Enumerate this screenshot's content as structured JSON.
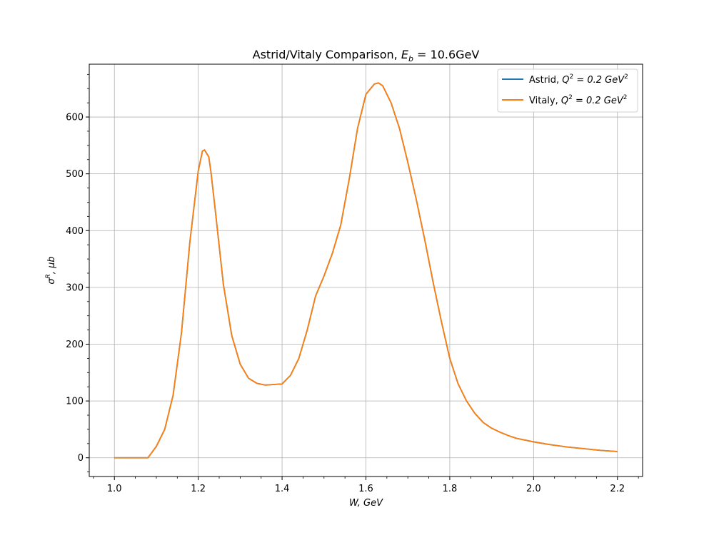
{
  "chart_data": {
    "type": "line",
    "title": "Astrid/Vitaly Comparison, E_b = 10.6GeV",
    "title_parts": {
      "prefix": "Astrid/Vitaly Comparison, ",
      "sym": "E",
      "sub": "b",
      "suffix": " = 10.6GeV"
    },
    "xlabel": "W, GeV",
    "ylabel": "σR, μb",
    "ylabel_parts": {
      "sym": "σ",
      "sup": "R",
      "rest": ", μb"
    },
    "xlim": [
      0.94,
      2.26
    ],
    "ylim": [
      -33,
      693
    ],
    "xticks": [
      1.0,
      1.2,
      1.4,
      1.6,
      1.8,
      2.0,
      2.2
    ],
    "xtick_labels": [
      "1.0",
      "1.2",
      "1.4",
      "1.6",
      "1.8",
      "2.0",
      "2.2"
    ],
    "yticks": [
      0,
      100,
      200,
      300,
      400,
      500,
      600
    ],
    "ytick_labels": [
      "0",
      "100",
      "200",
      "300",
      "400",
      "500",
      "600"
    ],
    "grid": true,
    "legend_placement": "top-right",
    "x": [
      1.0,
      1.02,
      1.04,
      1.06,
      1.08,
      1.1,
      1.12,
      1.14,
      1.16,
      1.18,
      1.2,
      1.21,
      1.215,
      1.225,
      1.23,
      1.24,
      1.26,
      1.28,
      1.3,
      1.32,
      1.34,
      1.36,
      1.38,
      1.4,
      1.42,
      1.44,
      1.46,
      1.48,
      1.5,
      1.52,
      1.54,
      1.56,
      1.58,
      1.6,
      1.62,
      1.63,
      1.64,
      1.66,
      1.68,
      1.7,
      1.72,
      1.74,
      1.76,
      1.78,
      1.8,
      1.82,
      1.84,
      1.86,
      1.88,
      1.9,
      1.92,
      1.94,
      1.96,
      1.98,
      2.0,
      2.04,
      2.08,
      2.12,
      2.16,
      2.2
    ],
    "series": [
      {
        "name": "Astrid, Q2 = 0.2 GeV2",
        "name_parts": {
          "prefix": "Astrid, ",
          "sym": "Q",
          "sup": "2",
          "mid": " = 0.2 GeV",
          "sup2": "2"
        },
        "color": "#1f77b4",
        "y": [
          0,
          0,
          0,
          0,
          0,
          20,
          50,
          110,
          220,
          380,
          505,
          540,
          542,
          530,
          505,
          440,
          305,
          215,
          165,
          140,
          131,
          128,
          129,
          130,
          145,
          175,
          225,
          285,
          320,
          360,
          410,
          490,
          580,
          640,
          658,
          660,
          655,
          625,
          580,
          520,
          455,
          385,
          310,
          240,
          175,
          130,
          100,
          78,
          62,
          52,
          45,
          39,
          34,
          31,
          28,
          23,
          19,
          16,
          13,
          11
        ]
      },
      {
        "name": "Vitaly, Q2 = 0.2 GeV2",
        "name_parts": {
          "prefix": "Vitaly, ",
          "sym": "Q",
          "sup": "2",
          "mid": " = 0.2 GeV",
          "sup2": "2"
        },
        "color": "#ff7f0e",
        "y": [
          0,
          0,
          0,
          0,
          0,
          20,
          50,
          110,
          220,
          380,
          505,
          540,
          542,
          530,
          505,
          440,
          305,
          215,
          165,
          140,
          131,
          128,
          129,
          130,
          145,
          175,
          225,
          285,
          320,
          360,
          410,
          490,
          580,
          640,
          658,
          660,
          655,
          625,
          580,
          520,
          455,
          385,
          310,
          240,
          175,
          130,
          100,
          78,
          62,
          52,
          45,
          39,
          34,
          31,
          28,
          23,
          19,
          16,
          13,
          11
        ]
      }
    ]
  }
}
